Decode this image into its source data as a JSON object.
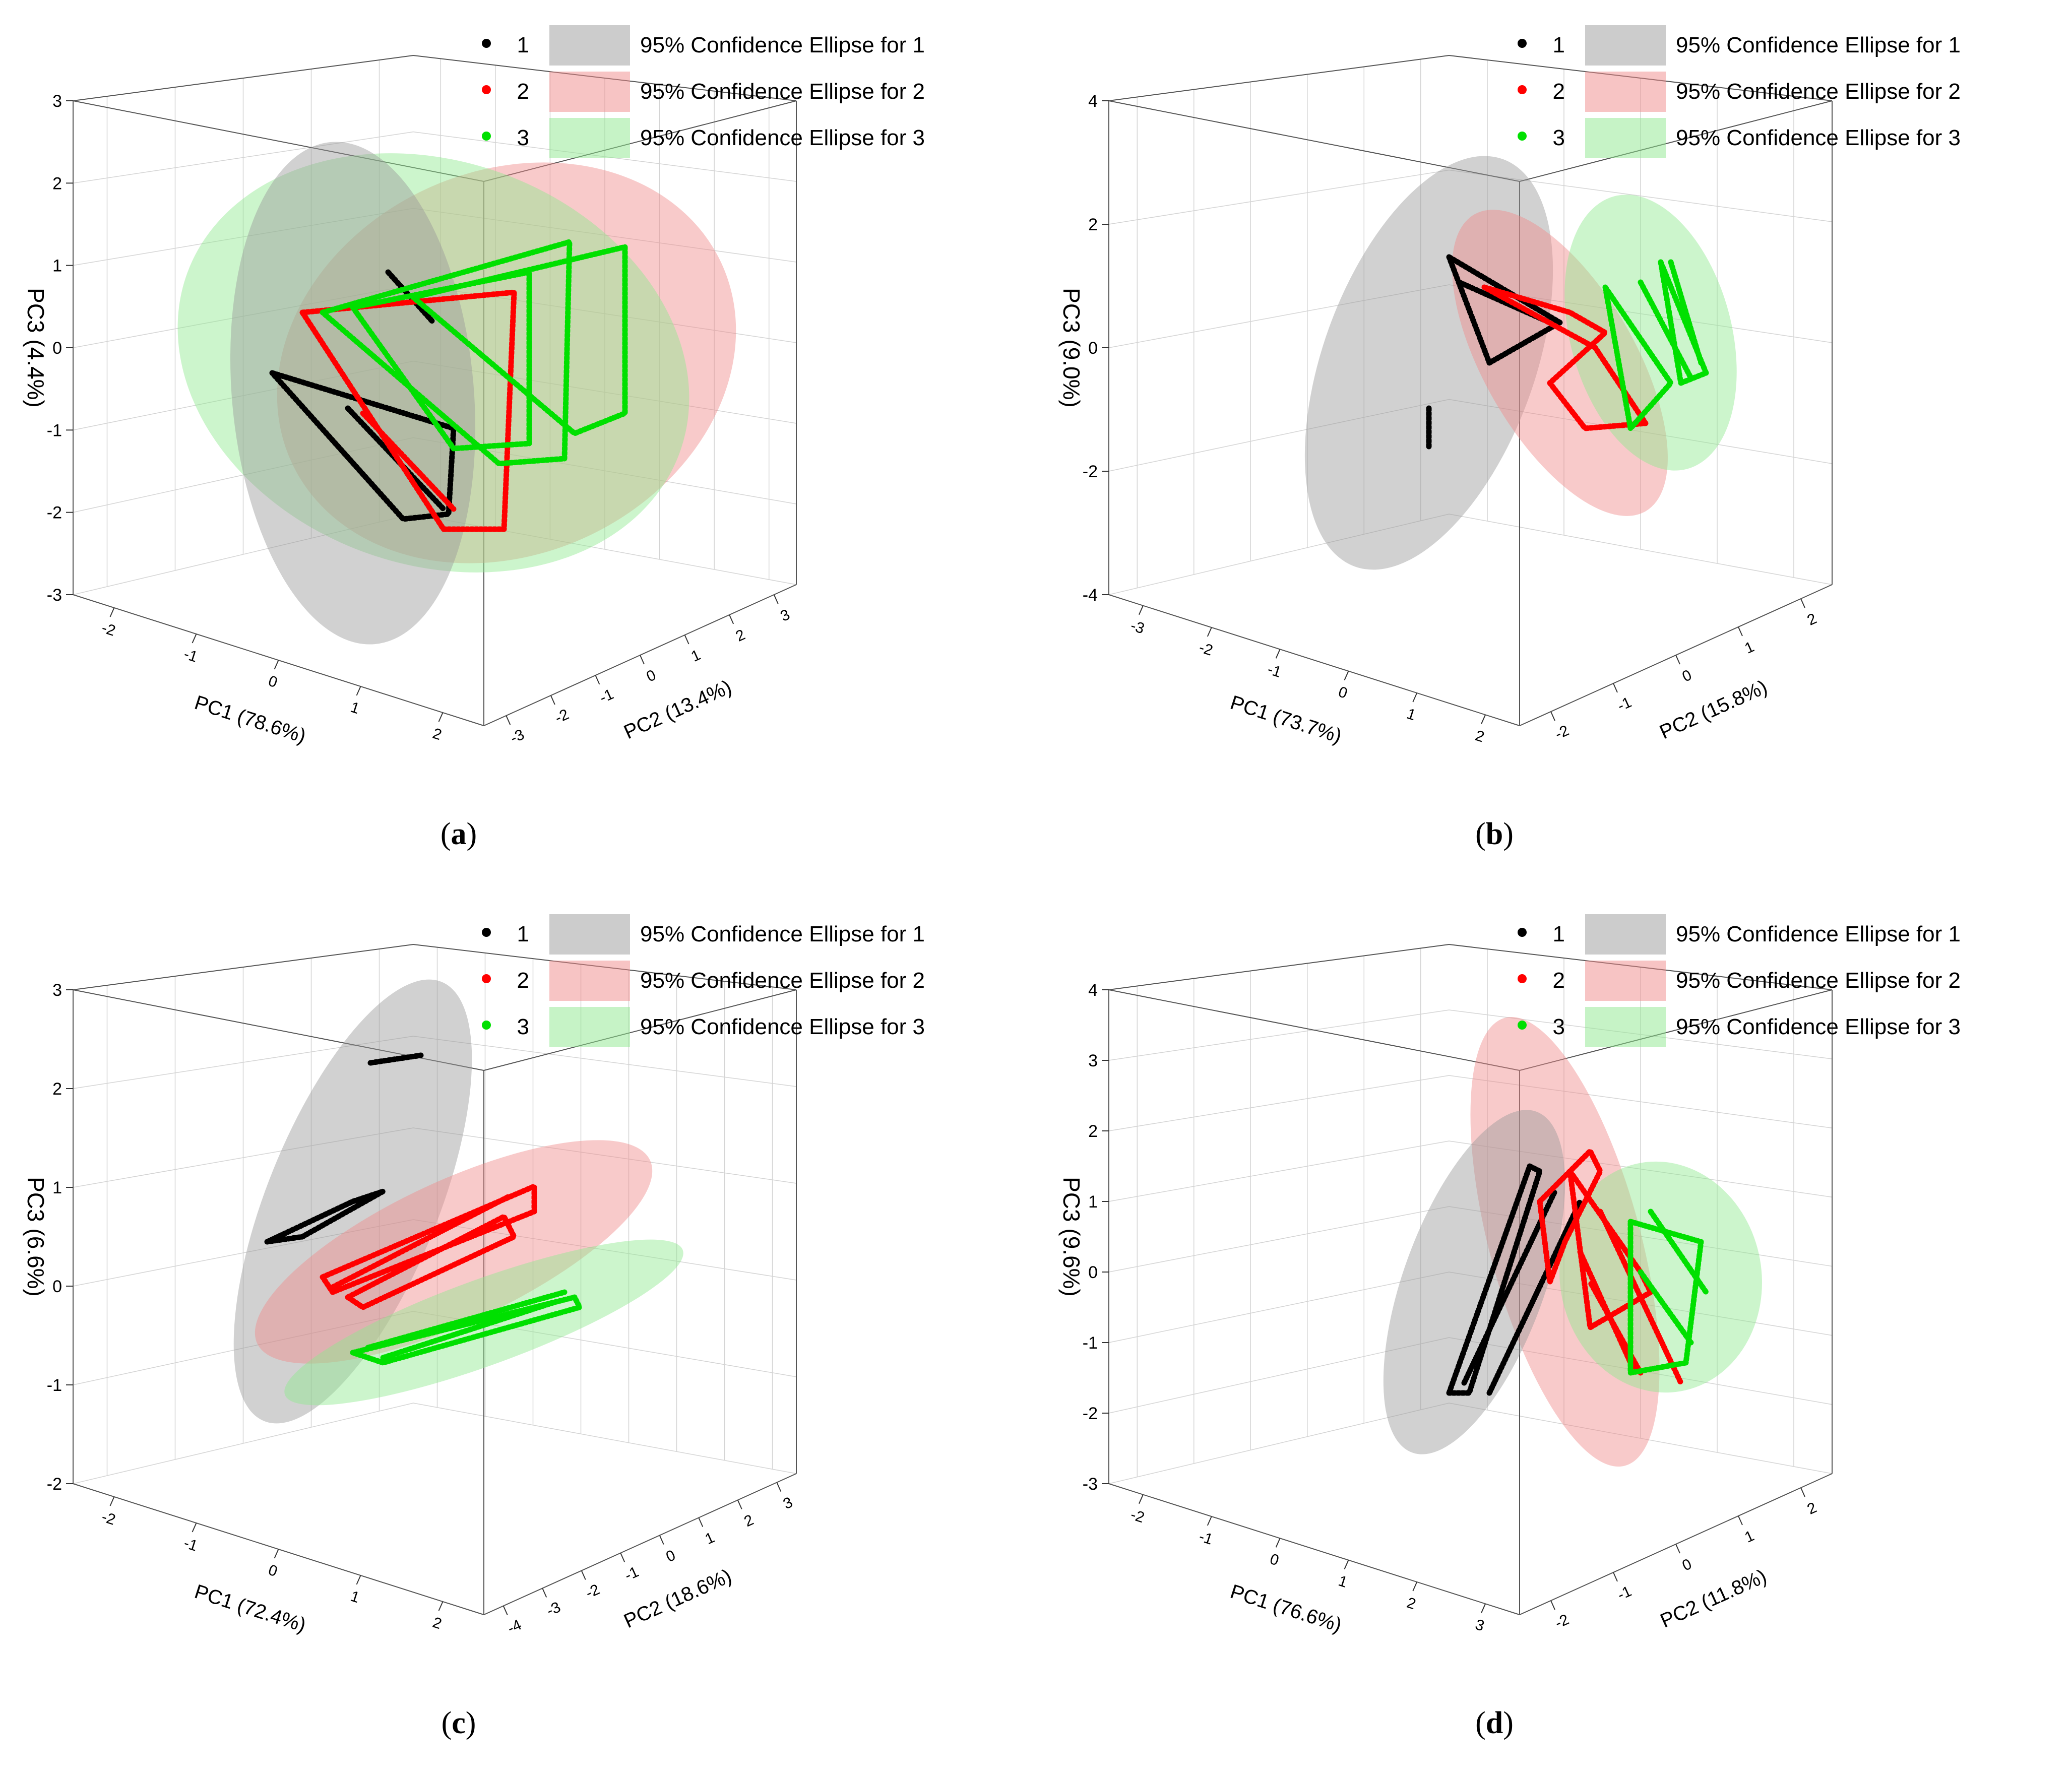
{
  "chart_data": [
    {
      "type": "scatter",
      "panel_label": "a",
      "xlabel": "PC1 (78.6%)",
      "ylabel": "PC2 (13.4%)",
      "zlabel": "PC3 (4.4%)",
      "xlim": [
        -3,
        3
      ],
      "ylim": [
        -3,
        3
      ],
      "zlim": [
        -3,
        3
      ],
      "x_ticks": [
        "-2",
        "-1",
        "0",
        "1",
        "2"
      ],
      "y_ticks": [
        "-3",
        "-2",
        "-1",
        "0",
        "1",
        "2",
        "3"
      ],
      "z_ticks": [
        "-3",
        "-2",
        "-1",
        "0",
        "1",
        "2",
        "3"
      ],
      "grid": true,
      "legend_position": "top-right",
      "series": [
        {
          "name": "1",
          "ellipse_label": "95% Confidence Ellipse for 1",
          "color": "#000000",
          "ellipse_color": "#9a9a9a"
        },
        {
          "name": "2",
          "ellipse_label": "95% Confidence Ellipse for 2",
          "color": "#ff0000",
          "ellipse_color": "#f08a8a"
        },
        {
          "name": "3",
          "ellipse_label": "95% Confidence Ellipse for 3",
          "color": "#00e000",
          "ellipse_color": "#8ee88e"
        }
      ]
    },
    {
      "type": "scatter",
      "panel_label": "b",
      "xlabel": "PC1 (73.7%)",
      "ylabel": "PC2 (15.8%)",
      "zlabel": "PC3 (9.0%)",
      "xlim": [
        -3,
        3
      ],
      "ylim": [
        -3,
        3
      ],
      "zlim": [
        -5,
        5
      ],
      "x_ticks": [
        "-3",
        "-2",
        "-1",
        "0",
        "1",
        "2"
      ],
      "y_ticks": [
        "-2",
        "-1",
        "0",
        "1",
        "2"
      ],
      "z_ticks": [
        "-4",
        "-2",
        "0",
        "2",
        "4"
      ],
      "grid": true,
      "legend_position": "top-right",
      "series": [
        {
          "name": "1",
          "ellipse_label": "95% Confidence Ellipse for 1",
          "color": "#000000",
          "ellipse_color": "#9a9a9a"
        },
        {
          "name": "2",
          "ellipse_label": "95% Confidence Ellipse for 2",
          "color": "#ff0000",
          "ellipse_color": "#f08a8a"
        },
        {
          "name": "3",
          "ellipse_label": "95% Confidence Ellipse for 3",
          "color": "#00e000",
          "ellipse_color": "#8ee88e"
        }
      ]
    },
    {
      "type": "scatter",
      "panel_label": "c",
      "xlabel": "PC1 (72.4%)",
      "ylabel": "PC2 (18.6%)",
      "zlabel": "PC3 (6.6%)",
      "xlim": [
        -3,
        3
      ],
      "ylim": [
        -4,
        3
      ],
      "zlim": [
        -3,
        3
      ],
      "x_ticks": [
        "-2",
        "-1",
        "0",
        "1",
        "2"
      ],
      "y_ticks": [
        "-4",
        "-3",
        "-2",
        "-1",
        "0",
        "1",
        "2",
        "3"
      ],
      "z_ticks": [
        "-2",
        "-1",
        "0",
        "1",
        "2",
        "3"
      ],
      "grid": true,
      "legend_position": "top-right",
      "series": [
        {
          "name": "1",
          "ellipse_label": "95% Confidence Ellipse for 1",
          "color": "#000000",
          "ellipse_color": "#9a9a9a"
        },
        {
          "name": "2",
          "ellipse_label": "95% Confidence Ellipse for 2",
          "color": "#ff0000",
          "ellipse_color": "#f08a8a"
        },
        {
          "name": "3",
          "ellipse_label": "95% Confidence Ellipse for 3",
          "color": "#00e000",
          "ellipse_color": "#8ee88e"
        }
      ]
    },
    {
      "type": "scatter",
      "panel_label": "d",
      "xlabel": "PC1 (76.6%)",
      "ylabel": "PC2 (11.8%)",
      "zlabel": "PC3 (9.6%)",
      "xlim": [
        -3,
        3
      ],
      "ylim": [
        -3,
        3
      ],
      "zlim": [
        -3,
        4
      ],
      "x_ticks": [
        "-2",
        "-1",
        "0",
        "1",
        "2",
        "3"
      ],
      "y_ticks": [
        "-2",
        "-1",
        "0",
        "1",
        "2"
      ],
      "z_ticks": [
        "-3",
        "-2",
        "-1",
        "0",
        "1",
        "2",
        "3",
        "4"
      ],
      "grid": true,
      "legend_position": "top-right",
      "series": [
        {
          "name": "1",
          "ellipse_label": "95% Confidence Ellipse for 1",
          "color": "#000000",
          "ellipse_color": "#9a9a9a"
        },
        {
          "name": "2",
          "ellipse_label": "95% Confidence Ellipse for 2",
          "color": "#ff0000",
          "ellipse_color": "#f08a8a"
        },
        {
          "name": "3",
          "ellipse_label": "95% Confidence Ellipse for 3",
          "color": "#00e000",
          "ellipse_color": "#8ee88e"
        }
      ]
    }
  ]
}
